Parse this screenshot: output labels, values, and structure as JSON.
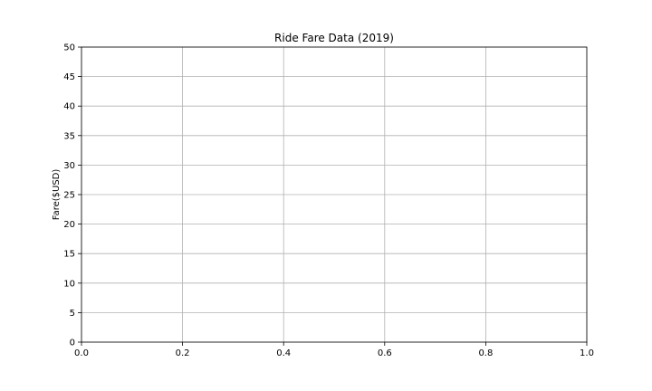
{
  "chart_data": {
    "type": "scatter",
    "title": "Ride Fare Data (2019)",
    "xlabel": "",
    "ylabel": "Fare($USD)",
    "xlim": [
      0.0,
      1.0
    ],
    "ylim": [
      0,
      50
    ],
    "x_ticks": [
      "0.0",
      "0.2",
      "0.4",
      "0.6",
      "0.8",
      "1.0"
    ],
    "y_ticks": [
      "0",
      "5",
      "10",
      "15",
      "20",
      "25",
      "30",
      "35",
      "40",
      "45",
      "50"
    ],
    "grid": true,
    "series": []
  }
}
